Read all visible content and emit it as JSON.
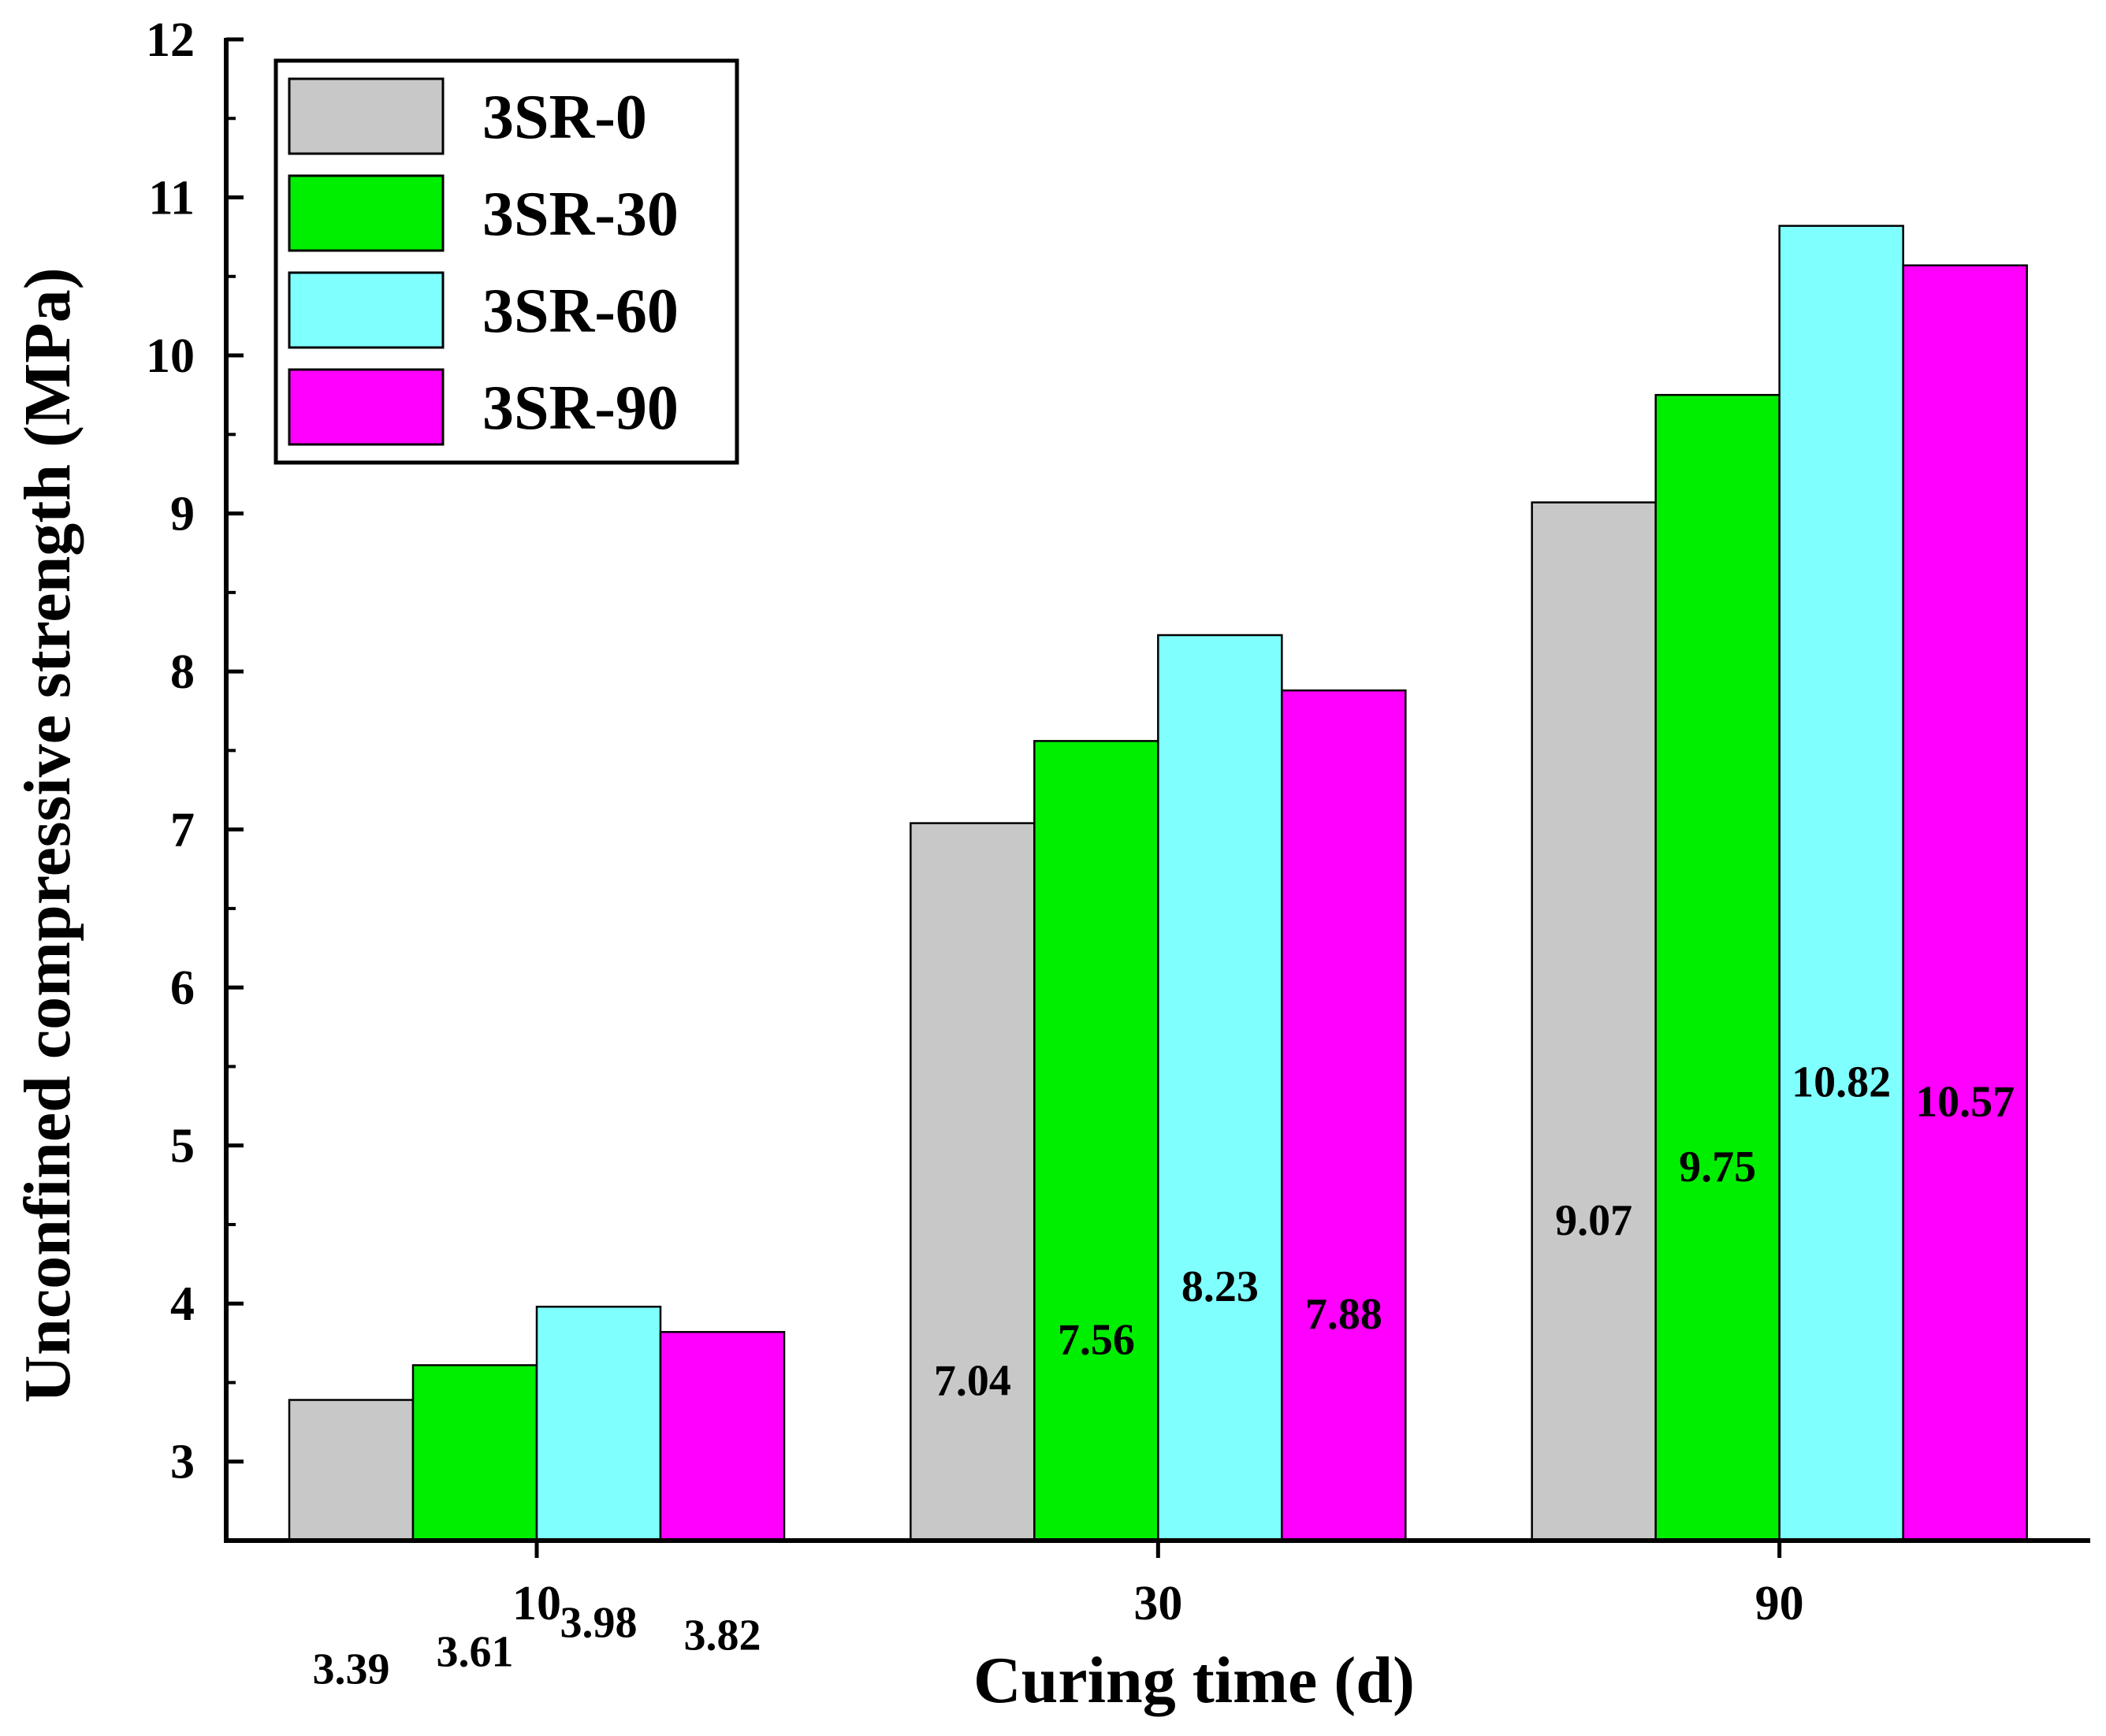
{
  "chart_data": {
    "type": "bar",
    "title": "",
    "xlabel": "Curing time (d)",
    "ylabel": "Unconfined compressive strength (MPa)",
    "categories": [
      "10",
      "30",
      "90"
    ],
    "ylim": [
      2.5,
      12
    ],
    "yticks": [
      "3",
      "4",
      "5",
      "6",
      "7",
      "8",
      "9",
      "10",
      "11",
      "12"
    ],
    "legend_position": "top-left",
    "series": [
      {
        "name": "3SR-0",
        "color": "#c8c8c8",
        "values": [
          3.39,
          7.04,
          9.07
        ],
        "labels": [
          "3.39",
          "7.04",
          "9.07"
        ]
      },
      {
        "name": "3SR-30",
        "color": "#00ee00",
        "values": [
          3.61,
          7.56,
          9.75
        ],
        "labels": [
          "3.61",
          "7.56",
          "9.75"
        ]
      },
      {
        "name": "3SR-60",
        "color": "#80ffff",
        "values": [
          3.98,
          8.23,
          10.82
        ],
        "labels": [
          "3.98",
          "8.23",
          "10.82"
        ]
      },
      {
        "name": "3SR-90",
        "color": "#ff00ff",
        "values": [
          3.82,
          7.88,
          10.57
        ],
        "labels": [
          "3.82",
          "7.88",
          "10.57"
        ]
      }
    ]
  }
}
